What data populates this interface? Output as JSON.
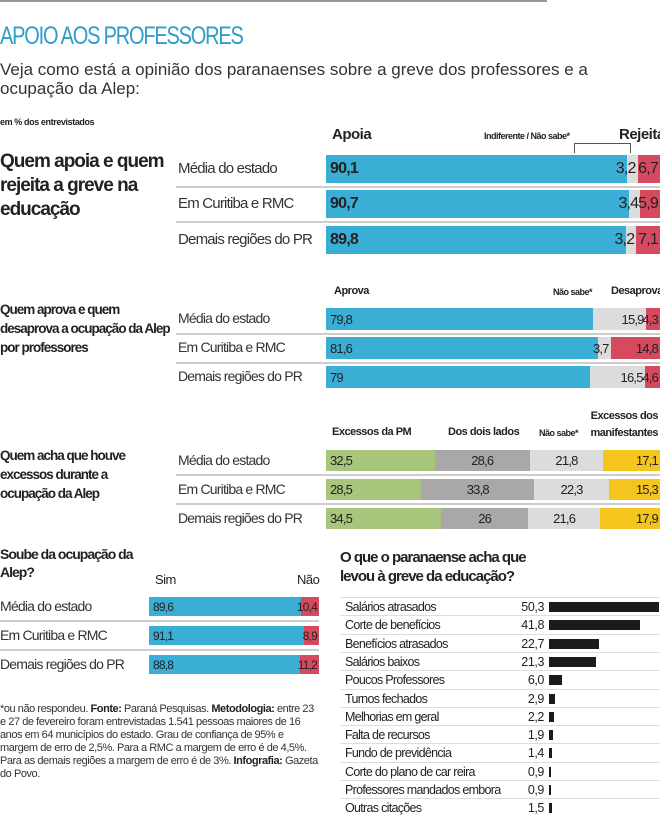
{
  "title": "APOIO AOS PROFESSORES",
  "subtitle": "Veja como está a opinião dos paranaenses sobre a greve dos professores e a ocupação da Alep:",
  "unit_note": "em % dos entrevistados",
  "colors": {
    "blue": "#3aaed5",
    "red": "#d64a5f",
    "light_gray": "#dcdcdc",
    "mid_gray": "#a8a8a8",
    "green": "#a8c57c",
    "yellow": "#f4c51c",
    "black": "#1b1b1b",
    "title_blue": "#2f9cc9"
  },
  "chart_data": [
    {
      "type": "bar",
      "stacked": true,
      "orientation": "horizontal",
      "title": "Quem apoia e quem rejeita a greve na educação",
      "categories": [
        "Média do estado",
        "Em Curitiba e RMC",
        "Demais regiões do PR"
      ],
      "series": [
        {
          "name": "Apoia",
          "values": [
            90.1,
            90.7,
            89.8
          ],
          "labels": [
            "90,1",
            "90,7",
            "89,8"
          ],
          "color": "blue"
        },
        {
          "name": "Indiferente / Não sabe*",
          "values": [
            3.2,
            3.4,
            3.2
          ],
          "labels": [
            "3,2",
            "3,4",
            "3,2"
          ],
          "color": "light_gray"
        },
        {
          "name": "Rejeita",
          "values": [
            6.7,
            5.9,
            7.1
          ],
          "labels": [
            "6,7",
            "5,9",
            "7,1"
          ],
          "color": "red"
        }
      ]
    },
    {
      "type": "bar",
      "stacked": true,
      "orientation": "horizontal",
      "title": "Quem aprova e quem desaprova a ocupação da Alep por professores",
      "categories": [
        "Média do estado",
        "Em Curitiba e RMC",
        "Demais regiões do PR"
      ],
      "series": [
        {
          "name": "Aprova",
          "values": [
            79.8,
            81.6,
            79
          ],
          "labels": [
            "79,8",
            "81,6",
            "79"
          ],
          "color": "blue"
        },
        {
          "name": "Não sabe*",
          "values": [
            15.9,
            3.7,
            16.5
          ],
          "labels": [
            "15,9",
            "3,7",
            "16,5"
          ],
          "color": "light_gray"
        },
        {
          "name": "Desaprova",
          "values": [
            4.3,
            14.8,
            4.6
          ],
          "labels": [
            "4,3",
            "14,8",
            "4,6"
          ],
          "color": "red"
        }
      ]
    },
    {
      "type": "bar",
      "stacked": true,
      "orientation": "horizontal",
      "title": "Quem acha que houve excessos durante a ocupação da Alep",
      "categories": [
        "Média do estado",
        "Em Curitiba e RMC",
        "Demais regiões do PR"
      ],
      "series": [
        {
          "name": "Excessos da PM",
          "values": [
            32.5,
            28.5,
            34.5
          ],
          "labels": [
            "32,5",
            "28,5",
            "34,5"
          ],
          "color": "green"
        },
        {
          "name": "Dos dois lados",
          "values": [
            28.6,
            33.8,
            26
          ],
          "labels": [
            "28,6",
            "33,8",
            "26"
          ],
          "color": "mid_gray"
        },
        {
          "name": "Não sabe*",
          "values": [
            21.8,
            22.3,
            21.6
          ],
          "labels": [
            "21,8",
            "22,3",
            "21,6"
          ],
          "color": "light_gray"
        },
        {
          "name": "Excessos dos manifestantes",
          "values": [
            17.1,
            15.3,
            17.9
          ],
          "labels": [
            "17,1",
            "15,3",
            "17,9"
          ],
          "color": "yellow"
        }
      ]
    },
    {
      "type": "bar",
      "stacked": true,
      "orientation": "horizontal",
      "title": "Soube da ocupação da Alep?",
      "categories": [
        "Média do estado",
        "Em Curitiba e RMC",
        "Demais regiões do PR"
      ],
      "series": [
        {
          "name": "Sim",
          "values": [
            89.6,
            91.1,
            88.8
          ],
          "labels": [
            "89,6",
            "91,1",
            "88,8"
          ],
          "color": "blue"
        },
        {
          "name": "Não",
          "values": [
            10.4,
            8.9,
            11.2
          ],
          "labels": [
            "10,4",
            "8,9",
            "11,2"
          ],
          "color": "red"
        }
      ]
    },
    {
      "type": "bar",
      "orientation": "horizontal",
      "title": "O que o paranaense acha que levou à greve da educação?",
      "categories": [
        "Salários atrasados",
        "Corte de benefícios",
        "Benefícios atrasados",
        "Salários baixos",
        "Poucos Professores",
        "Turnos fechados",
        "Melhorias em geral",
        "Falta de recursos",
        "Fundo de previdência",
        "Corte do plano de car reira",
        "Professores mandados embora",
        "Outras citações"
      ],
      "values": [
        50.3,
        41.8,
        22.7,
        21.3,
        6.0,
        2.9,
        2.2,
        1.9,
        1.4,
        0.9,
        0.9,
        1.5
      ],
      "labels": [
        "50,3",
        "41,8",
        "22,7",
        "21,3",
        "6,0",
        "2,9",
        "2,2",
        "1,9",
        "1,4",
        "0,9",
        "0,9",
        "1,5"
      ]
    }
  ],
  "footnote": {
    "star": "*ou não respondeu. ",
    "source_label": "Fonte:",
    "source": " Paraná Pesquisas. ",
    "method_label": "Metodologia:",
    "method": " entre 23 e 27 de fevereiro foram entrevistadas 1.541 pessoas maiores de 16 anos em 64 municípios do estado. Grau de confiança de 95% e margem de erro de 2,5%. Para a RMC a margem de erro é de 4,5%. Para as demais regiões a margem de erro é de 3%. ",
    "credit_label": "Infografia:",
    "credit": " Gazeta do Povo."
  }
}
